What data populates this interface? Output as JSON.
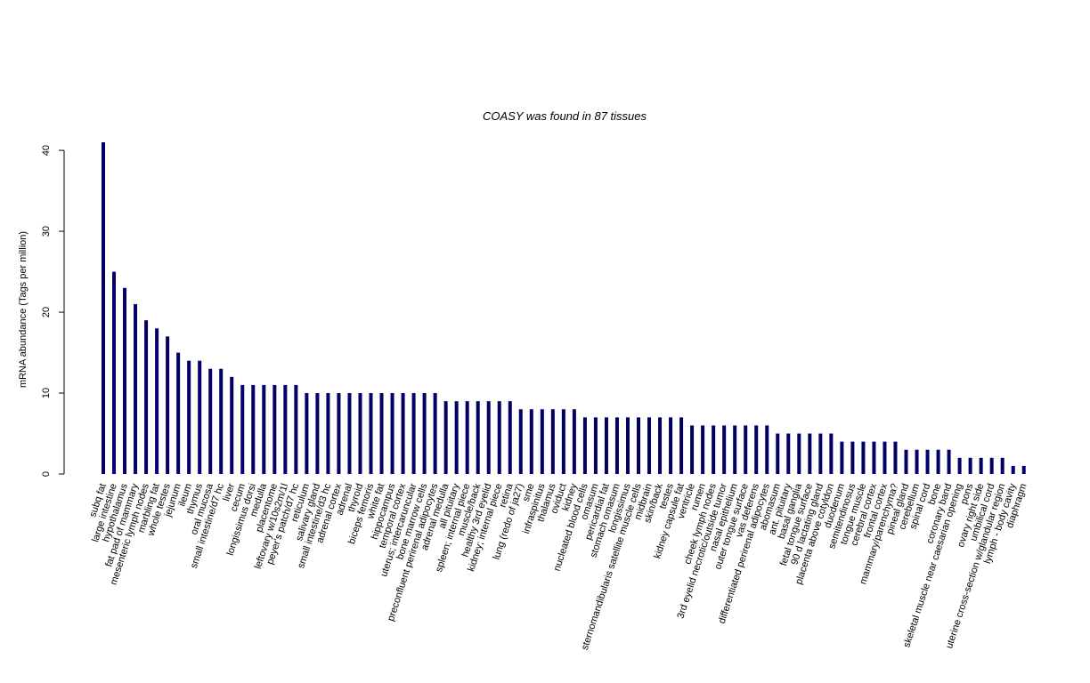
{
  "chart_data": {
    "type": "bar",
    "title": "COASY  was found in  87  tissues",
    "y_label": "mRNA abundance (Tags per million)",
    "color": "#000066",
    "ylim": [
      0,
      41
    ],
    "yticks": [
      0,
      10,
      20,
      30,
      40
    ],
    "categories": [
      "subq fat",
      "large intestine",
      "hypothalamus",
      "fat pad of mammary",
      "mesenteric lymph nodes",
      "marbling fat",
      "whole testes",
      "jejunum",
      "ileum",
      "thymus",
      "oral mucosa",
      "small intestine/d7 hc",
      "liver",
      "cecum",
      "longissimus dorsi",
      "medulla",
      "placentome",
      "leftovary w/10s2m/1l",
      "peyer's patch/d7 hc",
      "reticulum",
      "salivary gland",
      "small intestine/d3 hc",
      "adrenal cortex",
      "adrenal",
      "thyroid",
      "biceps femoris",
      "white fat",
      "hippocampus",
      "temporal cortex",
      "uterus; intercaruncular",
      "bone marrow cells",
      "preconfluent perirenal adipocytes",
      "adrenal medulla",
      "all pituitary",
      "spleen; internal piece",
      "muscle/back",
      "healthy 3rd eyelid",
      "kidney; internal piece",
      "retina",
      "lung (redo of ja27)",
      "sme",
      "infraspinitus",
      "thalamus",
      "oviduct",
      "kidney",
      "nucleated blood cells",
      "omasum",
      "pericardial fat",
      "stomach omasum",
      "longissimus",
      "sternomandibularis satellite muscle cells",
      "midbrain",
      "skin/back",
      "testes",
      "kidney capsule fat",
      "ventricle",
      "rumen",
      "cheek lymph nodes",
      "3rd eyelid necrotic/outside tumor",
      "nasal epithelium",
      "outer tongue surface",
      "vas deferens",
      "differentiated perirenal adipocytes",
      "abomasum",
      "ant. pituitary",
      "basal ganglia",
      "fetal tongue surface",
      "90 d lactating gland",
      "placenta above cotyldon",
      "duodenum",
      "semitendinosus",
      "tongue muscle",
      "cerebral cortex",
      "frontal cortex",
      "mammary/parenchyma?",
      "pineal gland",
      "cerebellum",
      "spinal cord",
      "bone",
      "coronary band",
      "skeletal muscle near caesarian opening",
      "pons",
      "ovary right side",
      "umbilical cord",
      "uterine cross-section w/glandular region",
      "lymph - body cavity",
      "diaphragm"
    ],
    "values": [
      41,
      25,
      23,
      21,
      19,
      18,
      17,
      15,
      14,
      14,
      13,
      13,
      12,
      11,
      11,
      11,
      11,
      11,
      11,
      10,
      10,
      10,
      10,
      10,
      10,
      10,
      10,
      10,
      10,
      10,
      10,
      10,
      9,
      9,
      9,
      9,
      9,
      9,
      9,
      8,
      8,
      8,
      8,
      8,
      8,
      7,
      7,
      7,
      7,
      7,
      7,
      7,
      7,
      7,
      7,
      6,
      6,
      6,
      6,
      6,
      6,
      6,
      6,
      5,
      5,
      5,
      5,
      5,
      5,
      4,
      4,
      4,
      4,
      4,
      4,
      3,
      3,
      3,
      3,
      3,
      2,
      2,
      2,
      2,
      2,
      1,
      1
    ]
  }
}
